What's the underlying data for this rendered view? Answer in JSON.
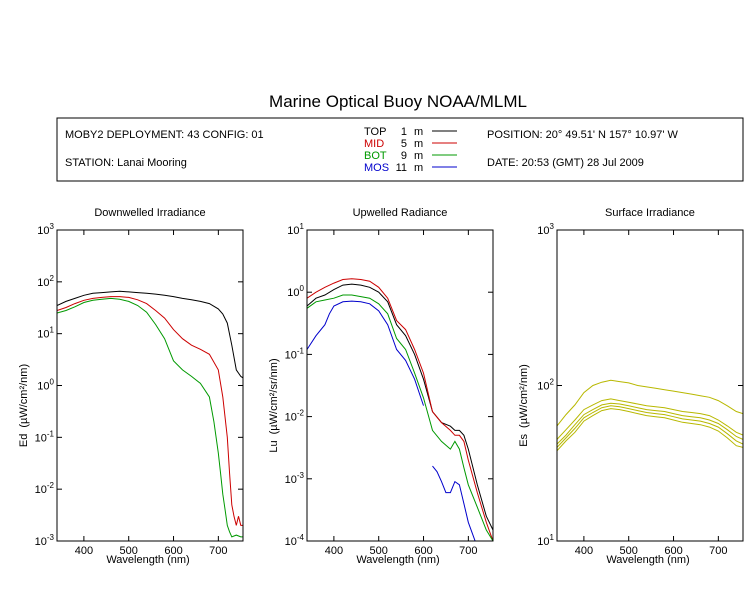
{
  "title": "Marine Optical Buoy NOAA/MLML",
  "info": {
    "deployment": "MOBY2 DEPLOYMENT: 43 CONFIG: 01",
    "station": "STATION: Lanai Mooring",
    "position": "POSITION: 20° 49.51' N   157° 10.97' W",
    "date": "DATE: 20:53 (GMT) 28 Jul 2009"
  },
  "legend": [
    {
      "name": "TOP",
      "depth": "1",
      "unit": "m",
      "color": "#000000"
    },
    {
      "name": "MID",
      "depth": "5",
      "unit": "m",
      "color": "#cc0000"
    },
    {
      "name": "BOT",
      "depth": "9",
      "unit": "m",
      "color": "#009900"
    },
    {
      "name": "MOS",
      "depth": "11",
      "unit": "m",
      "color": "#0000cc"
    }
  ],
  "chart_data": [
    {
      "type": "line",
      "title": "Downwelled Irradiance",
      "xlabel": "Wavelength (nm)",
      "ylabel_main": "Ed",
      "ylabel_unit": "(µW/cm²/nm)",
      "xlim": [
        340,
        755
      ],
      "ylim": [
        0.001,
        1000
      ],
      "yscale": "log",
      "x_ticks": [
        "400",
        "500",
        "600",
        "700"
      ],
      "y_ticks": [
        {
          "base": "10",
          "exp": "3"
        },
        {
          "base": "10",
          "exp": "2"
        },
        {
          "base": "10",
          "exp": "1"
        },
        {
          "base": "10",
          "exp": "0"
        },
        {
          "base": "10",
          "exp": "-1"
        },
        {
          "base": "10",
          "exp": "-2"
        },
        {
          "base": "10",
          "exp": "-3"
        }
      ],
      "series": [
        {
          "name": "TOP",
          "color": "#000000",
          "x": [
            340,
            360,
            380,
            400,
            420,
            440,
            460,
            480,
            500,
            520,
            540,
            560,
            580,
            600,
            620,
            640,
            660,
            680,
            700,
            710,
            720,
            730,
            740,
            750,
            755
          ],
          "y": [
            35,
            42,
            48,
            55,
            60,
            62,
            64,
            66,
            64,
            62,
            60,
            58,
            55,
            52,
            48,
            45,
            42,
            38,
            30,
            24,
            16,
            6,
            2,
            1.5,
            1.4
          ]
        },
        {
          "name": "MID",
          "color": "#cc0000",
          "x": [
            340,
            360,
            380,
            400,
            420,
            440,
            460,
            480,
            500,
            520,
            540,
            560,
            580,
            600,
            620,
            640,
            660,
            680,
            700,
            710,
            720,
            725,
            730,
            735,
            740,
            745,
            750,
            755
          ],
          "y": [
            28,
            32,
            38,
            44,
            48,
            50,
            52,
            52,
            50,
            45,
            38,
            28,
            20,
            12,
            8,
            6,
            5,
            4,
            2,
            0.6,
            0.1,
            0.02,
            0.005,
            0.003,
            0.002,
            0.003,
            0.002,
            0.002
          ]
        },
        {
          "name": "BOT",
          "color": "#009900",
          "x": [
            340,
            360,
            380,
            400,
            420,
            440,
            460,
            480,
            500,
            520,
            540,
            560,
            580,
            600,
            620,
            640,
            660,
            680,
            690,
            700,
            705,
            710,
            715,
            720,
            725,
            730,
            740,
            750,
            755
          ],
          "y": [
            25,
            28,
            33,
            40,
            44,
            46,
            48,
            46,
            42,
            35,
            26,
            15,
            8,
            3,
            2,
            1.5,
            1.1,
            0.6,
            0.2,
            0.05,
            0.02,
            0.008,
            0.004,
            0.002,
            0.0015,
            0.0012,
            0.0013,
            0.0012,
            0.0012
          ]
        }
      ]
    },
    {
      "type": "line",
      "title": "Upwelled Radiance",
      "xlabel": "Wavelength (nm)",
      "ylabel_main": "Lu",
      "ylabel_unit": "(µW/cm²/sr/nm)",
      "xlim": [
        340,
        755
      ],
      "ylim": [
        0.0001,
        10
      ],
      "yscale": "log",
      "x_ticks": [
        "400",
        "500",
        "600",
        "700"
      ],
      "y_ticks": [
        {
          "base": "10",
          "exp": "1"
        },
        {
          "base": "10",
          "exp": "0"
        },
        {
          "base": "10",
          "exp": "-1"
        },
        {
          "base": "10",
          "exp": "-2"
        },
        {
          "base": "10",
          "exp": "-3"
        },
        {
          "base": "10",
          "exp": "-4"
        }
      ],
      "series": [
        {
          "name": "TOP",
          "color": "#000000",
          "x": [
            340,
            360,
            380,
            400,
            420,
            440,
            460,
            480,
            500,
            520,
            540,
            560,
            580,
            600,
            620,
            640,
            660,
            670,
            680,
            690,
            700,
            720,
            740,
            755
          ],
          "y": [
            0.6,
            0.8,
            0.9,
            1.1,
            1.3,
            1.35,
            1.3,
            1.2,
            1.0,
            0.7,
            0.3,
            0.2,
            0.1,
            0.04,
            0.012,
            0.008,
            0.007,
            0.006,
            0.006,
            0.005,
            0.003,
            0.0008,
            0.00025,
            0.00015
          ]
        },
        {
          "name": "MID",
          "color": "#cc0000",
          "x": [
            340,
            360,
            380,
            400,
            420,
            440,
            460,
            480,
            500,
            520,
            540,
            560,
            580,
            600,
            620,
            640,
            660,
            670,
            680,
            690,
            700,
            720,
            740,
            755
          ],
          "y": [
            0.8,
            1.0,
            1.2,
            1.4,
            1.6,
            1.65,
            1.6,
            1.5,
            1.2,
            0.8,
            0.35,
            0.25,
            0.12,
            0.05,
            0.012,
            0.008,
            0.006,
            0.005,
            0.005,
            0.004,
            0.002,
            0.0006,
            0.0002,
            0.0001
          ]
        },
        {
          "name": "BOT",
          "color": "#009900",
          "x": [
            340,
            360,
            380,
            400,
            420,
            440,
            460,
            480,
            500,
            520,
            540,
            560,
            580,
            600,
            620,
            640,
            660,
            670,
            680,
            690,
            700,
            720,
            740,
            755
          ],
          "y": [
            0.55,
            0.7,
            0.75,
            0.8,
            0.9,
            0.9,
            0.85,
            0.8,
            0.65,
            0.45,
            0.18,
            0.12,
            0.05,
            0.02,
            0.006,
            0.004,
            0.003,
            0.004,
            0.003,
            0.0015,
            0.0008,
            0.00035,
            0.00015,
            0.0001
          ]
        },
        {
          "name": "MOS",
          "color": "#0000cc",
          "x": [
            340,
            360,
            380,
            390,
            400,
            420,
            440,
            460,
            480,
            500,
            520,
            540,
            560,
            580,
            600
          ],
          "y": [
            0.12,
            0.2,
            0.3,
            0.45,
            0.6,
            0.7,
            0.72,
            0.7,
            0.65,
            0.5,
            0.3,
            0.12,
            0.08,
            0.04,
            0.015
          ],
          "x2": [
            620,
            630,
            640,
            650,
            660,
            670,
            680,
            690,
            700,
            720,
            740,
            755
          ],
          "y2": [
            0.0016,
            0.0013,
            0.0009,
            0.0006,
            0.0006,
            0.0009,
            0.0008,
            0.0004,
            0.0002,
            8e-05,
            3e-05,
            1e-05
          ]
        }
      ]
    },
    {
      "type": "line",
      "title": "Surface Irradiance",
      "xlabel": "Wavelength (nm)",
      "ylabel_main": "Es",
      "ylabel_unit": "(µW/cm²/nm)",
      "xlim": [
        340,
        755
      ],
      "ylim": [
        10,
        1000
      ],
      "yscale": "log",
      "x_ticks": [
        "400",
        "500",
        "600",
        "700"
      ],
      "y_ticks": [
        {
          "base": "10",
          "exp": "3"
        },
        {
          "base": "10",
          "exp": "2"
        },
        {
          "base": "10",
          "exp": "1"
        }
      ],
      "series_color": "#b8b800",
      "series": [
        {
          "name": "",
          "color": "#b8b800",
          "x": [
            340,
            360,
            380,
            400,
            420,
            440,
            460,
            480,
            500,
            520,
            540,
            560,
            580,
            600,
            620,
            640,
            660,
            680,
            700,
            720,
            740,
            755
          ],
          "y": [
            55,
            65,
            75,
            90,
            100,
            105,
            108,
            106,
            104,
            100,
            98,
            96,
            94,
            92,
            90,
            88,
            86,
            84,
            80,
            74,
            68,
            66
          ]
        },
        {
          "name": "",
          "color": "#b8b800",
          "x": [
            340,
            360,
            380,
            400,
            420,
            440,
            460,
            480,
            500,
            520,
            540,
            560,
            580,
            600,
            620,
            640,
            660,
            680,
            700,
            720,
            740,
            755
          ],
          "y": [
            45,
            52,
            60,
            70,
            75,
            80,
            82,
            80,
            78,
            76,
            74,
            73,
            72,
            70,
            68,
            67,
            66,
            64,
            60,
            55,
            50,
            48
          ]
        },
        {
          "name": "",
          "color": "#b8b800",
          "x": [
            340,
            360,
            380,
            400,
            420,
            440,
            460,
            480,
            500,
            520,
            540,
            560,
            580,
            600,
            620,
            640,
            660,
            680,
            700,
            720,
            740,
            755
          ],
          "y": [
            42,
            48,
            56,
            65,
            70,
            75,
            77,
            76,
            74,
            72,
            70,
            69,
            68,
            66,
            64,
            63,
            62,
            60,
            57,
            52,
            47,
            45
          ]
        },
        {
          "name": "",
          "color": "#b8b800",
          "x": [
            340,
            360,
            380,
            400,
            420,
            440,
            460,
            480,
            500,
            520,
            540,
            560,
            580,
            600,
            620,
            640,
            660,
            680,
            700,
            720,
            740,
            755
          ],
          "y": [
            40,
            46,
            53,
            62,
            67,
            72,
            74,
            73,
            71,
            69,
            67,
            66,
            65,
            63,
            61,
            60,
            59,
            57,
            54,
            49,
            44,
            42
          ]
        },
        {
          "name": "",
          "color": "#b8b800",
          "x": [
            340,
            360,
            380,
            400,
            420,
            440,
            460,
            480,
            500,
            520,
            540,
            560,
            580,
            600,
            620,
            640,
            660,
            680,
            700,
            720,
            740,
            755
          ],
          "y": [
            38,
            44,
            50,
            59,
            64,
            69,
            71,
            70,
            68,
            66,
            64,
            63,
            62,
            60,
            58,
            57,
            56,
            54,
            51,
            46,
            41,
            40
          ]
        }
      ]
    }
  ]
}
